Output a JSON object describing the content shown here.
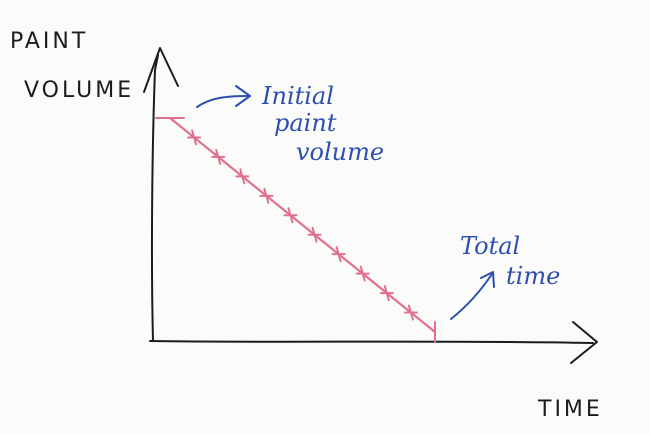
{
  "chart_data": {
    "type": "line",
    "title": "",
    "xlabel": "TIME",
    "ylabel_lines": [
      "PAINT",
      "VOLUME"
    ],
    "x": [
      0,
      1,
      2,
      3,
      4,
      5,
      6,
      7,
      8,
      9,
      10,
      11
    ],
    "y": [
      11,
      10,
      9,
      8,
      7,
      6,
      5,
      4,
      3,
      2,
      1,
      0
    ],
    "xlim": [
      0,
      11
    ],
    "ylim": [
      0,
      11
    ],
    "grid": false,
    "legend": "none",
    "line_color": "#e0708f",
    "axis_color": "#1c1c1c",
    "annotation_color": "#2f4fb0",
    "annotations": [
      {
        "target": "start",
        "lines": [
          "Initial",
          "paint",
          "volume"
        ]
      },
      {
        "target": "end",
        "lines": [
          "Total",
          "time"
        ]
      }
    ]
  }
}
